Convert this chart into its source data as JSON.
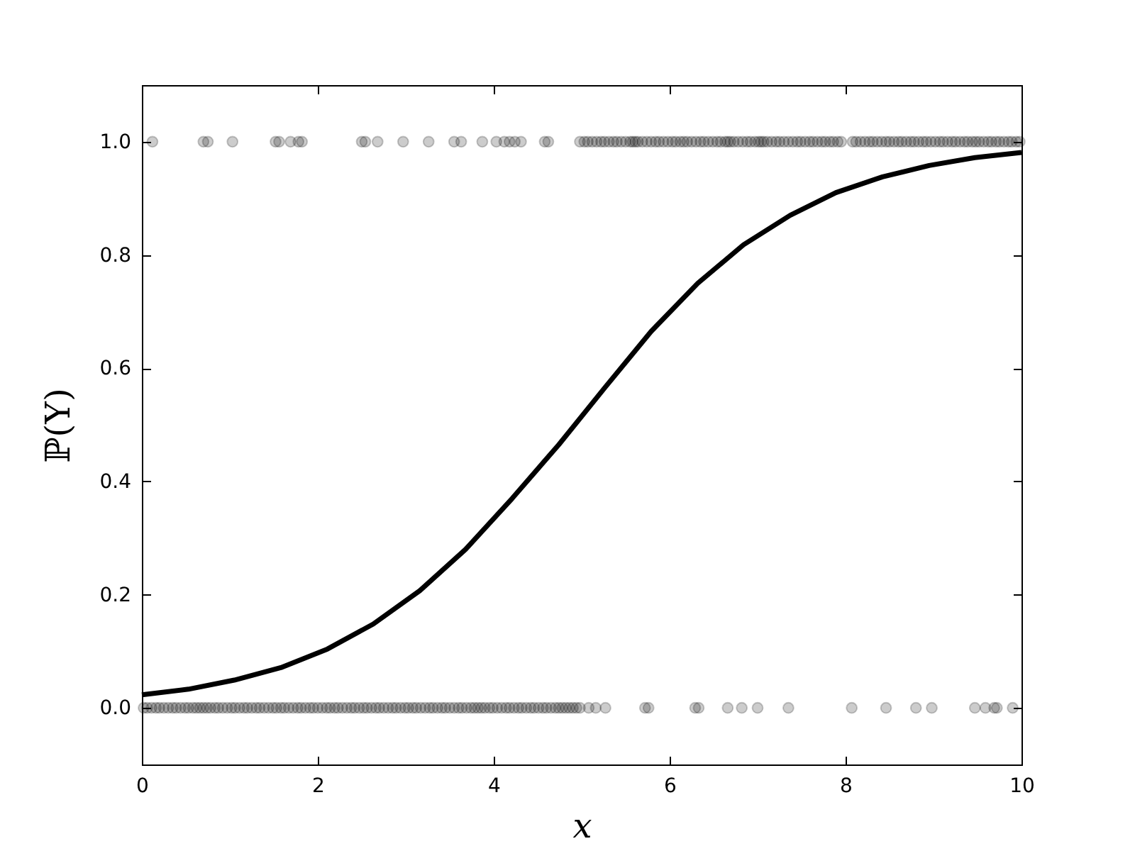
{
  "chart_data": {
    "type": "scatter",
    "xlabel": "x",
    "ylabel": "ℙ(Y)",
    "xlim": [
      0,
      10
    ],
    "ylim": [
      -0.1,
      1.1
    ],
    "xticks": [
      0,
      2,
      4,
      6,
      8,
      10
    ],
    "yticks": [
      {
        "value": 0,
        "label": "0.0"
      },
      0.2,
      0.4,
      0.6,
      0.8,
      {
        "value": 1,
        "label": "1.0"
      }
    ],
    "series": [
      {
        "color": "#000000",
        "marker": "circle",
        "x": [
          0.12,
          0.7,
          0.75,
          1.03,
          1.52,
          1.56,
          1.69,
          1.78,
          1.82,
          2.5,
          2.54,
          2.68,
          2.97,
          3.26,
          3.55,
          3.63,
          3.87,
          4.03,
          4.12,
          4.18,
          4.24,
          4.31,
          4.58,
          4.62,
          4.98,
          5.03,
          5.07,
          5.12,
          5.17,
          5.22,
          5.26,
          5.31,
          5.36,
          5.4,
          5.45,
          5.5,
          5.55,
          5.58,
          5.61,
          5.64,
          5.69,
          5.74,
          5.79,
          5.84,
          5.88,
          5.93,
          5.98,
          6.03,
          6.07,
          6.12,
          6.16,
          6.2,
          6.25,
          6.3,
          6.35,
          6.39,
          6.44,
          6.49,
          6.54,
          6.58,
          6.63,
          6.66,
          6.69,
          6.73,
          6.78,
          6.83,
          6.88,
          6.92,
          6.97,
          7.01,
          7.04,
          7.07,
          7.11,
          7.16,
          7.21,
          7.25,
          7.3,
          7.35,
          7.4,
          7.45,
          7.49,
          7.54,
          7.59,
          7.63,
          7.68,
          7.73,
          7.77,
          7.82,
          7.86,
          7.91,
          7.95,
          8.08,
          8.12,
          8.17,
          8.22,
          8.27,
          8.31,
          8.36,
          8.41,
          8.46,
          8.5,
          8.55,
          8.6,
          8.64,
          8.69,
          8.74,
          8.78,
          8.83,
          8.88,
          8.92,
          8.97,
          9.02,
          9.07,
          9.11,
          9.16,
          9.21,
          9.25,
          9.3,
          9.35,
          9.39,
          9.44,
          9.48,
          9.52,
          9.57,
          9.62,
          9.66,
          9.71,
          9.75,
          9.8,
          9.85,
          9.89,
          9.94,
          9.98
        ],
        "values": [
          1,
          1,
          1,
          1,
          1,
          1,
          1,
          1,
          1,
          1,
          1,
          1,
          1,
          1,
          1,
          1,
          1,
          1,
          1,
          1,
          1,
          1,
          1,
          1,
          1,
          1,
          1,
          1,
          1,
          1,
          1,
          1,
          1,
          1,
          1,
          1,
          1,
          1,
          1,
          1,
          1,
          1,
          1,
          1,
          1,
          1,
          1,
          1,
          1,
          1,
          1,
          1,
          1,
          1,
          1,
          1,
          1,
          1,
          1,
          1,
          1,
          1,
          1,
          1,
          1,
          1,
          1,
          1,
          1,
          1,
          1,
          1,
          1,
          1,
          1,
          1,
          1,
          1,
          1,
          1,
          1,
          1,
          1,
          1,
          1,
          1,
          1,
          1,
          1,
          1,
          1,
          1,
          1,
          1,
          1,
          1,
          1,
          1,
          1,
          1,
          1,
          1,
          1,
          1,
          1,
          1,
          1,
          1,
          1,
          1,
          1,
          1,
          1,
          1,
          1,
          1,
          1,
          1,
          1,
          1,
          1,
          1,
          1,
          1,
          1,
          1,
          1,
          1,
          1,
          1,
          1,
          1,
          1
        ]
      },
      {
        "color": "#000000",
        "marker": "circle",
        "x": [
          0.02,
          0.06,
          0.11,
          0.16,
          0.2,
          0.25,
          0.3,
          0.35,
          0.39,
          0.44,
          0.49,
          0.53,
          0.58,
          0.62,
          0.66,
          0.7,
          0.74,
          0.78,
          0.83,
          0.87,
          0.92,
          0.97,
          1.02,
          1.06,
          1.11,
          1.16,
          1.2,
          1.25,
          1.3,
          1.34,
          1.39,
          1.44,
          1.49,
          1.53,
          1.58,
          1.62,
          1.67,
          1.72,
          1.77,
          1.81,
          1.86,
          1.91,
          1.95,
          2.0,
          2.05,
          2.1,
          2.14,
          2.19,
          2.23,
          2.28,
          2.33,
          2.38,
          2.42,
          2.47,
          2.52,
          2.56,
          2.61,
          2.66,
          2.7,
          2.75,
          2.8,
          2.85,
          2.89,
          2.94,
          2.99,
          3.03,
          3.08,
          3.12,
          3.17,
          3.22,
          3.27,
          3.31,
          3.36,
          3.41,
          3.45,
          3.5,
          3.55,
          3.6,
          3.64,
          3.69,
          3.74,
          3.78,
          3.82,
          3.86,
          3.9,
          3.95,
          3.99,
          4.04,
          4.09,
          4.14,
          4.18,
          4.23,
          4.28,
          4.32,
          4.37,
          4.42,
          4.46,
          4.51,
          4.56,
          4.6,
          4.65,
          4.7,
          4.74,
          4.78,
          4.82,
          4.86,
          4.9,
          4.94,
          4.98,
          5.08,
          5.16,
          5.27,
          5.72,
          5.76,
          6.29,
          6.33,
          6.66,
          6.82,
          7.0,
          7.35,
          8.07,
          8.46,
          8.8,
          8.98,
          9.47,
          9.59,
          9.69,
          9.72,
          9.9
        ],
        "values": [
          0,
          0,
          0,
          0,
          0,
          0,
          0,
          0,
          0,
          0,
          0,
          0,
          0,
          0,
          0,
          0,
          0,
          0,
          0,
          0,
          0,
          0,
          0,
          0,
          0,
          0,
          0,
          0,
          0,
          0,
          0,
          0,
          0,
          0,
          0,
          0,
          0,
          0,
          0,
          0,
          0,
          0,
          0,
          0,
          0,
          0,
          0,
          0,
          0,
          0,
          0,
          0,
          0,
          0,
          0,
          0,
          0,
          0,
          0,
          0,
          0,
          0,
          0,
          0,
          0,
          0,
          0,
          0,
          0,
          0,
          0,
          0,
          0,
          0,
          0,
          0,
          0,
          0,
          0,
          0,
          0,
          0,
          0,
          0,
          0,
          0,
          0,
          0,
          0,
          0,
          0,
          0,
          0,
          0,
          0,
          0,
          0,
          0,
          0,
          0,
          0,
          0,
          0,
          0,
          0,
          0,
          0,
          0,
          0,
          0,
          0,
          0,
          0,
          0,
          0,
          0,
          0,
          0,
          0,
          0,
          0,
          0,
          0,
          0,
          0,
          0,
          0,
          0,
          0
        ]
      },
      {
        "type": "line",
        "color": "#000000",
        "line_style": "solid",
        "x": [
          0,
          0.53,
          1.05,
          1.58,
          2.11,
          2.63,
          3.16,
          3.68,
          4.21,
          4.74,
          5.26,
          5.79,
          6.32,
          6.84,
          7.37,
          7.89,
          8.42,
          8.95,
          9.47,
          10
        ],
        "values": [
          0.023,
          0.033,
          0.049,
          0.071,
          0.104,
          0.148,
          0.207,
          0.28,
          0.37,
          0.465,
          0.565,
          0.665,
          0.75,
          0.818,
          0.87,
          0.91,
          0.938,
          0.958,
          0.972,
          0.981
        ]
      }
    ]
  }
}
